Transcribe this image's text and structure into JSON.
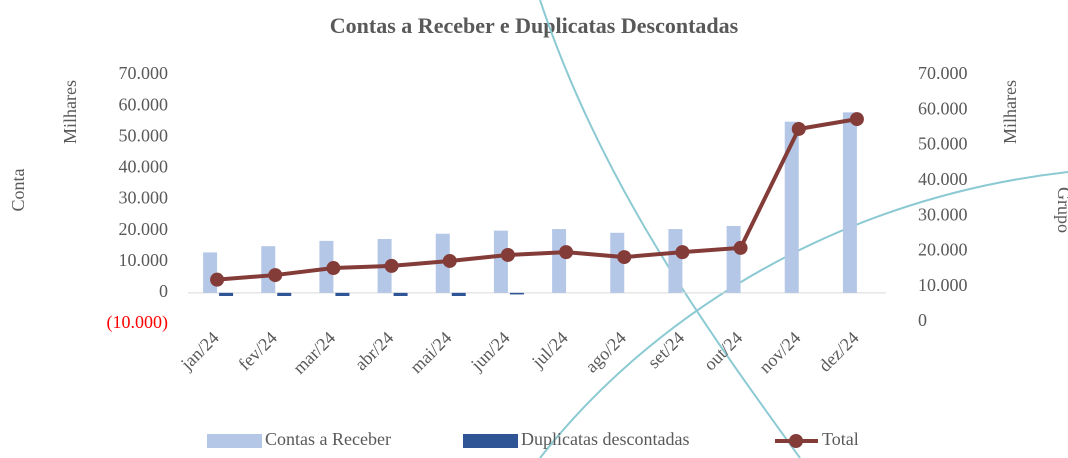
{
  "chart_data": {
    "type": "bar_line",
    "title": "Contas a Receber e Duplicatas Descontadas",
    "ylabel": "Conta",
    "y_unit_label": "Milhares",
    "y2label": "Grupo",
    "y2_unit_label": "Milhares",
    "categories": [
      "jan/24",
      "fev/24",
      "mar/24",
      "abr/24",
      "mai/24",
      "jun/24",
      "jul/24",
      "ago/24",
      "set/24",
      "out/24",
      "nov/24",
      "dez/24"
    ],
    "series": [
      {
        "name": "Contas a Receber",
        "kind": "bar",
        "color": "#b4c7e7",
        "axis": "y",
        "values": [
          13000,
          15000,
          16700,
          17300,
          19000,
          20000,
          20500,
          19300,
          20500,
          21500,
          55000,
          58000
        ]
      },
      {
        "name": "Duplicatas descontadas",
        "kind": "bar",
        "color": "#2f5597",
        "axis": "y",
        "values": [
          -1000,
          -1000,
          -1000,
          -1000,
          -1000,
          -500,
          0,
          0,
          0,
          0,
          0,
          0
        ]
      },
      {
        "name": "Total",
        "kind": "line",
        "color": "#843c39",
        "axis": "y2",
        "values": [
          12000,
          13300,
          15300,
          15900,
          17300,
          19000,
          19800,
          18400,
          19800,
          21000,
          54700,
          57500
        ]
      }
    ],
    "ylim": [
      -10000,
      70000
    ],
    "yticks": [
      {
        "value": -10000,
        "label": "(10.000)"
      },
      0,
      {
        "value": 10000,
        "label": "10.000"
      },
      {
        "value": 20000,
        "label": "20.000"
      },
      {
        "value": 30000,
        "label": "30.000"
      },
      {
        "value": 40000,
        "label": "40.000"
      },
      {
        "value": 50000,
        "label": "50.000"
      },
      {
        "value": 60000,
        "label": "60.000"
      },
      {
        "value": 70000,
        "label": "70.000"
      }
    ],
    "y2lim": [
      0,
      70000
    ],
    "y2ticks": [
      0,
      {
        "value": 10000,
        "label": "10.000"
      },
      {
        "value": 20000,
        "label": "20.000"
      },
      {
        "value": 30000,
        "label": "30.000"
      },
      {
        "value": 40000,
        "label": "40.000"
      },
      {
        "value": 50000,
        "label": "50.000"
      },
      {
        "value": 60000,
        "label": "60.000"
      },
      {
        "value": 70000,
        "label": "70.000"
      }
    ],
    "legend": "bottom"
  }
}
